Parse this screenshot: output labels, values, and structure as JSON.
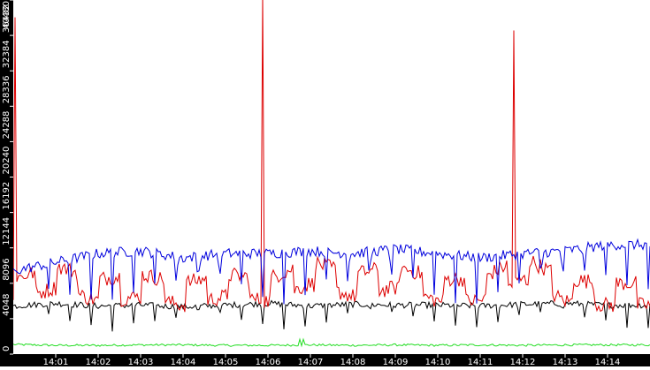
{
  "chart_data": {
    "type": "line",
    "title": "",
    "xlabel": "",
    "ylabel": "",
    "ylim": [
      0,
      40480
    ],
    "y_ticks": [
      0,
      4048,
      8096,
      12144,
      16192,
      20240,
      24288,
      28336,
      32384,
      36432,
      40480
    ],
    "x_ticks": [
      "14:01",
      "14:02",
      "14:03",
      "14:04",
      "14:05",
      "14:06",
      "14:07",
      "14:08",
      "14:09",
      "14:10",
      "14:11",
      "14:12",
      "14:13",
      "14:14"
    ],
    "x_range": [
      "14:00",
      "14:14:50"
    ],
    "grid": false,
    "legend": null,
    "colors": {
      "axis_bg": "#000000",
      "axis_text": "#ffffff",
      "plot_bg": "#ffffff"
    },
    "series": [
      {
        "name": "blue",
        "color": "#0000dd",
        "approx_level": 11000,
        "description": "Oscillates ~10000-12500 with periodic sharp dips to ~5000-6000 roughly every 30-40s",
        "keypoints": [
          [
            0,
            9500
          ],
          [
            1,
            10500
          ],
          [
            2,
            11500
          ],
          [
            3,
            11800
          ],
          [
            4,
            11000
          ],
          [
            5,
            11500
          ],
          [
            6,
            11500
          ],
          [
            7,
            11800
          ],
          [
            8,
            11500
          ],
          [
            9,
            12000
          ],
          [
            10,
            11500
          ],
          [
            11,
            11000
          ],
          [
            12,
            11500
          ],
          [
            13,
            11800
          ],
          [
            14,
            12500
          ]
        ]
      },
      {
        "name": "red",
        "color": "#dd0000",
        "approx_level": 7500,
        "description": "Alternates between ~6500 and ~9500 plateaus; large spikes at ~14:00 (38000), ~14:06 (40480+), ~14:12 (37000)",
        "spikes": [
          {
            "time": "14:00:02",
            "value": 38500
          },
          {
            "time": "14:05:53",
            "value": 41000
          },
          {
            "time": "14:11:48",
            "value": 37000
          }
        ],
        "keypoints": [
          [
            0,
            7000
          ],
          [
            1,
            8500
          ],
          [
            2,
            7000
          ],
          [
            3,
            7500
          ],
          [
            4,
            6500
          ],
          [
            5,
            7500
          ],
          [
            6,
            7000
          ],
          [
            7,
            9000
          ],
          [
            8,
            7500
          ],
          [
            9,
            8500
          ],
          [
            10,
            7000
          ],
          [
            11,
            7000
          ],
          [
            12,
            9500
          ],
          [
            13,
            7000
          ],
          [
            14,
            6500
          ]
        ]
      },
      {
        "name": "black",
        "color": "#000000",
        "approx_level": 5500,
        "description": "Steady ~5300-6000 with periodic sharp dips to ~3000 roughly every 30s",
        "keypoints": [
          [
            0,
            5500
          ],
          [
            1,
            5800
          ],
          [
            2,
            5500
          ],
          [
            3,
            5600
          ],
          [
            4,
            5400
          ],
          [
            5,
            5600
          ],
          [
            6,
            5800
          ],
          [
            7,
            5500
          ],
          [
            8,
            5700
          ],
          [
            9,
            5600
          ],
          [
            10,
            5600
          ],
          [
            11,
            5500
          ],
          [
            12,
            5700
          ],
          [
            13,
            5800
          ],
          [
            14,
            5600
          ]
        ]
      },
      {
        "name": "green",
        "color": "#22dd22",
        "approx_level": 1000,
        "description": "Flat ~900-1200 with small bumps near 14:06:45 (~1700)",
        "keypoints": [
          [
            0,
            1100
          ],
          [
            1,
            1000
          ],
          [
            2,
            1000
          ],
          [
            3,
            1050
          ],
          [
            4,
            1050
          ],
          [
            5,
            1000
          ],
          [
            6,
            1000
          ],
          [
            7,
            1050
          ],
          [
            8,
            1000
          ],
          [
            9,
            1050
          ],
          [
            10,
            1000
          ],
          [
            11,
            1050
          ],
          [
            12,
            1000
          ],
          [
            13,
            1050
          ],
          [
            14,
            1050
          ]
        ]
      }
    ]
  }
}
